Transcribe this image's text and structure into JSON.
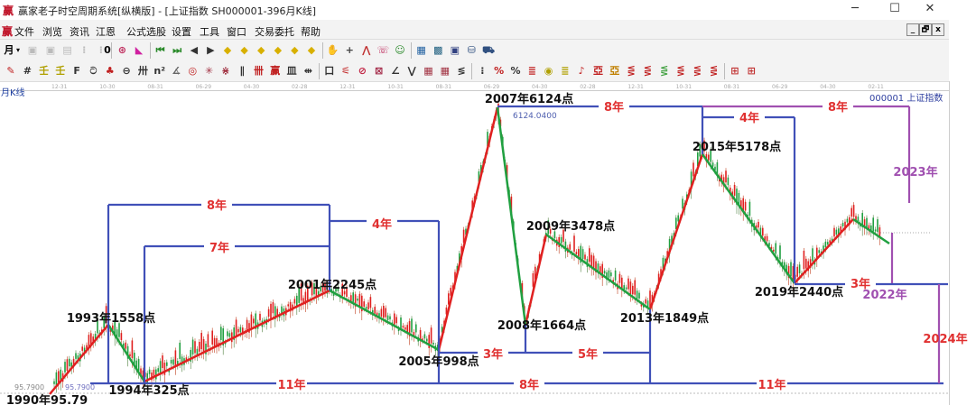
{
  "window": {
    "logo": "赢",
    "title": "赢家老子时空周期系统[纵横版] - [上证指数  SH000001-396月K线]",
    "minimize": "─",
    "maximize": "☐",
    "close": "✕"
  },
  "menu": {
    "logo": "赢",
    "items": [
      "文件",
      "浏览",
      "资讯",
      "江恩",
      "公式选股",
      "设置",
      "工具",
      "窗口",
      "交易委托",
      "帮助"
    ],
    "mdi": [
      "_",
      "🗗",
      "x"
    ]
  },
  "toolbar1": {
    "period": "月",
    "period_arrow": "▾",
    "zoom_value": "0",
    "icons": [
      {
        "name": "window-icon",
        "glyph": "▣",
        "color": "#bbb"
      },
      {
        "name": "doc-icon",
        "glyph": "▤",
        "color": "#bbb"
      },
      {
        "name": "chart-small-icon",
        "glyph": "⁞",
        "color": "#bbb"
      },
      {
        "name": "chart-small2-icon",
        "glyph": "⁞",
        "color": "#bbb"
      },
      {
        "name": "cycle-icon",
        "glyph": "⊛",
        "color": "#c03060"
      },
      {
        "name": "flag-icon",
        "glyph": "◣",
        "color": "#d020a0"
      },
      {
        "name": "first-icon",
        "glyph": "⏮",
        "color": "#2a8a2a"
      },
      {
        "name": "last-icon",
        "glyph": "⏭",
        "color": "#2a8a2a"
      },
      {
        "name": "left-icon",
        "glyph": "◀",
        "color": "#333"
      },
      {
        "name": "right-icon",
        "glyph": "▶",
        "color": "#333"
      },
      {
        "name": "diamond-icon",
        "glyph": "◆",
        "color": "#d8b000"
      },
      {
        "name": "diamond-icon",
        "glyph": "◆",
        "color": "#d8b000"
      },
      {
        "name": "diamond-icon",
        "glyph": "◆",
        "color": "#d8b000"
      },
      {
        "name": "diamond-icon",
        "glyph": "◆",
        "color": "#d8b000"
      },
      {
        "name": "diamond-icon",
        "glyph": "◆",
        "color": "#d8b000"
      },
      {
        "name": "diamond-icon",
        "glyph": "◆",
        "color": "#d8b000"
      },
      {
        "name": "hand-icon",
        "glyph": "✋",
        "color": "#444"
      },
      {
        "name": "crosshair-icon",
        "glyph": "+",
        "color": "#444"
      },
      {
        "name": "trend-icon",
        "glyph": "⋀",
        "color": "#c03030"
      },
      {
        "name": "chat-icon",
        "glyph": "☏",
        "color": "#c03060"
      },
      {
        "name": "people-icon",
        "glyph": "☺",
        "color": "#2a8a2a"
      },
      {
        "name": "calendar-icon",
        "glyph": "▦",
        "color": "#2060a0"
      },
      {
        "name": "calculator-icon",
        "glyph": "▩",
        "color": "#206080"
      },
      {
        "name": "save-icon",
        "glyph": "▣",
        "color": "#304080"
      },
      {
        "name": "network-icon",
        "glyph": "⛁",
        "color": "#305080"
      },
      {
        "name": "truck-icon",
        "glyph": "⛟",
        "color": "#305080"
      }
    ]
  },
  "toolbar2": {
    "icons": [
      {
        "name": "pen-icon",
        "glyph": "✎",
        "color": "#c02020"
      },
      {
        "name": "grid-lines-icon",
        "glyph": "#",
        "color": "#333"
      },
      {
        "name": "gold-icon",
        "glyph": "壬",
        "color": "#b0a000"
      },
      {
        "name": "gold2-icon",
        "glyph": "壬",
        "color": "#b0a000"
      },
      {
        "name": "fib-icon",
        "glyph": "F",
        "color": "#333"
      },
      {
        "name": "spiral-icon",
        "glyph": "ට",
        "color": "#333"
      },
      {
        "name": "brush-icon",
        "glyph": "♣",
        "color": "#c02020"
      },
      {
        "name": "circle-icon",
        "glyph": "⊖",
        "color": "#333"
      },
      {
        "name": "hash-icon",
        "glyph": "卅",
        "color": "#333"
      },
      {
        "name": "n2-icon",
        "glyph": "n²",
        "color": "#333"
      },
      {
        "name": "angle-icon",
        "glyph": "∡",
        "color": "#666"
      },
      {
        "name": "target-icon",
        "glyph": "◎",
        "color": "#c02020"
      },
      {
        "name": "star-icon",
        "glyph": "✳",
        "color": "#a03040"
      },
      {
        "name": "mesh-icon",
        "glyph": "⋇",
        "color": "#a03040"
      },
      {
        "name": "lines-icon",
        "glyph": "∥",
        "color": "#333"
      },
      {
        "name": "gann-icon",
        "glyph": "卌",
        "color": "#c02020"
      },
      {
        "name": "win-icon",
        "glyph": "赢",
        "color": "#c02020"
      },
      {
        "name": "bars-icon",
        "glyph": "皿",
        "color": "#333"
      },
      {
        "name": "split-icon",
        "glyph": "⇹",
        "color": "#333"
      },
      {
        "name": "box-icon",
        "glyph": "口",
        "color": "#333"
      },
      {
        "name": "fan-icon",
        "glyph": "⚟",
        "color": "#c02020"
      },
      {
        "name": "fan2-icon",
        "glyph": "⊘",
        "color": "#c02040"
      },
      {
        "name": "fan3-icon",
        "glyph": "⊠",
        "color": "#a02040"
      },
      {
        "name": "angle2-icon",
        "glyph": "∠",
        "color": "#333"
      },
      {
        "name": "wave-icon",
        "glyph": "⋁",
        "color": "#333"
      },
      {
        "name": "table-icon",
        "glyph": "▦",
        "color": "#a03040"
      },
      {
        "name": "table2-icon",
        "glyph": "▦",
        "color": "#a03040"
      },
      {
        "name": "slash-icon",
        "glyph": "≶",
        "color": "#333"
      },
      {
        "name": "ruler-icon",
        "glyph": "⁝",
        "color": "#333"
      },
      {
        "name": "pct-red-icon",
        "glyph": "%",
        "color": "#c02020"
      },
      {
        "name": "pct-icon",
        "glyph": "%",
        "color": "#333"
      },
      {
        "name": "pct2-icon",
        "glyph": "≣",
        "color": "#c02020"
      },
      {
        "name": "coin-icon",
        "glyph": "◉",
        "color": "#b0a000"
      },
      {
        "name": "stack-icon",
        "glyph": "≣",
        "color": "#b0a000"
      },
      {
        "name": "pointer-icon",
        "glyph": "♪",
        "color": "#c02020"
      },
      {
        "name": "gold3-icon",
        "glyph": "亞",
        "color": "#c02020"
      },
      {
        "name": "gold4-icon",
        "glyph": "亞",
        "color": "#c08000"
      },
      {
        "name": "lines2-icon",
        "glyph": "⋚",
        "color": "#c02020"
      },
      {
        "name": "lines3-icon",
        "glyph": "⋚",
        "color": "#c02020"
      },
      {
        "name": "lines4-icon",
        "glyph": "⋚",
        "color": "#40a040"
      },
      {
        "name": "lines5-icon",
        "glyph": "⋚",
        "color": "#c02020"
      },
      {
        "name": "lines6-icon",
        "glyph": "⋚",
        "color": "#c02020"
      },
      {
        "name": "lines7-icon",
        "glyph": "⋚",
        "color": "#c02020"
      },
      {
        "name": "grid-icon",
        "glyph": "⊞",
        "color": "#c03030"
      },
      {
        "name": "grid2-icon",
        "glyph": "⊞",
        "color": "#c03030"
      }
    ]
  },
  "chart": {
    "period_label": "月K线",
    "symbol_label": "000001  上证指数",
    "time_ticks": [
      "12-31",
      "10-30",
      "08-31",
      "06-29",
      "04-30",
      "02-28",
      "12-31",
      "10-31",
      "08-31",
      "06-29",
      "04-30",
      "02-28",
      "12-31",
      "10-31",
      "08-31",
      "06-29",
      "04-30",
      "02-11"
    ],
    "max_value_label": "6124.0400",
    "min_value_label_left": "95.7900",
    "min_value_label": "95.7900",
    "colors": {
      "up": "#e02020",
      "down": "#20a040",
      "bracket": "#4050b8",
      "bracket_purple": "#a050b0",
      "label_red": "#e03030",
      "label_purple": "#a050b0"
    },
    "key_points": [
      {
        "label": "1990年95.79",
        "year": 1990,
        "value": 95.79
      },
      {
        "label": "1993年1558点",
        "year": 1993,
        "value": 1558
      },
      {
        "label": "1994年325点",
        "year": 1994,
        "value": 325
      },
      {
        "label": "2001年2245点",
        "year": 2001,
        "value": 2245
      },
      {
        "label": "2005年998点",
        "year": 2005,
        "value": 998
      },
      {
        "label": "2007年6124点",
        "year": 2007,
        "value": 6124
      },
      {
        "label": "2008年1664点",
        "year": 2008,
        "value": 1664
      },
      {
        "label": "2009年3478点",
        "year": 2009,
        "value": 3478
      },
      {
        "label": "2013年1849点",
        "year": 2013,
        "value": 1849
      },
      {
        "label": "2015年5178点",
        "year": 2015,
        "value": 5178
      },
      {
        "label": "2019年2440点",
        "year": 2019,
        "value": 2440
      }
    ],
    "cycle_labels": {
      "c8_1993_2001": "8年",
      "c7_1994_2001": "7年",
      "c4_2001_2005": "4年",
      "c11_1994_2005": "11年",
      "c8_2005_2013": "8年",
      "c3_2005_2008": "3年",
      "c5_2008_2013": "5年",
      "c8_2007_2015": "8年",
      "c4_2015_2019": "4年",
      "c8_2015_2023": "8年",
      "c3_2019_2022": "3年",
      "c11_2013_2024": "11年",
      "y2023": "2023年",
      "y2022": "2022年",
      "y2024": "2024年"
    }
  }
}
